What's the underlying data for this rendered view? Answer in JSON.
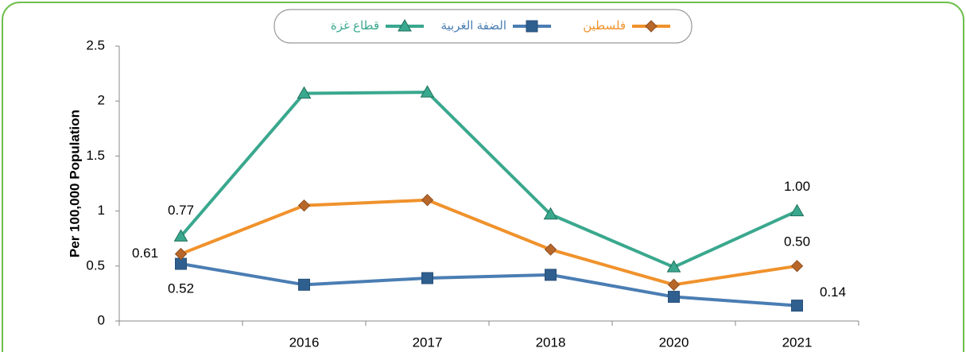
{
  "chart_data": {
    "type": "line",
    "categories": [
      null,
      "2016",
      "2017",
      "2018",
      "2020",
      "2021"
    ],
    "y_label": "Per 100,000 Population",
    "ylim": [
      0,
      2.5
    ],
    "yticks": [
      0,
      0.5,
      1,
      1.5,
      2,
      2.5
    ],
    "series": [
      {
        "name": "قطاع غزة",
        "color": "#3aa88e",
        "marker": "triangle",
        "values": [
          0.77,
          2.07,
          2.08,
          0.97,
          0.49,
          1.0
        ],
        "value_labels": [
          "0.77",
          null,
          null,
          null,
          null,
          "1.00"
        ]
      },
      {
        "name": "الضفة الغربية",
        "color": "#4a7db3",
        "marker": "square",
        "values": [
          0.52,
          0.33,
          0.39,
          0.42,
          0.22,
          0.14
        ],
        "value_labels": [
          "0.52",
          null,
          null,
          null,
          null,
          "0.14"
        ]
      },
      {
        "name": "فلسطين",
        "color": "#f0922c",
        "marker": "diamond",
        "values": [
          0.61,
          1.05,
          1.1,
          0.65,
          0.33,
          0.5
        ],
        "value_labels": [
          "0.61",
          null,
          null,
          null,
          null,
          "0.50"
        ]
      }
    ]
  }
}
